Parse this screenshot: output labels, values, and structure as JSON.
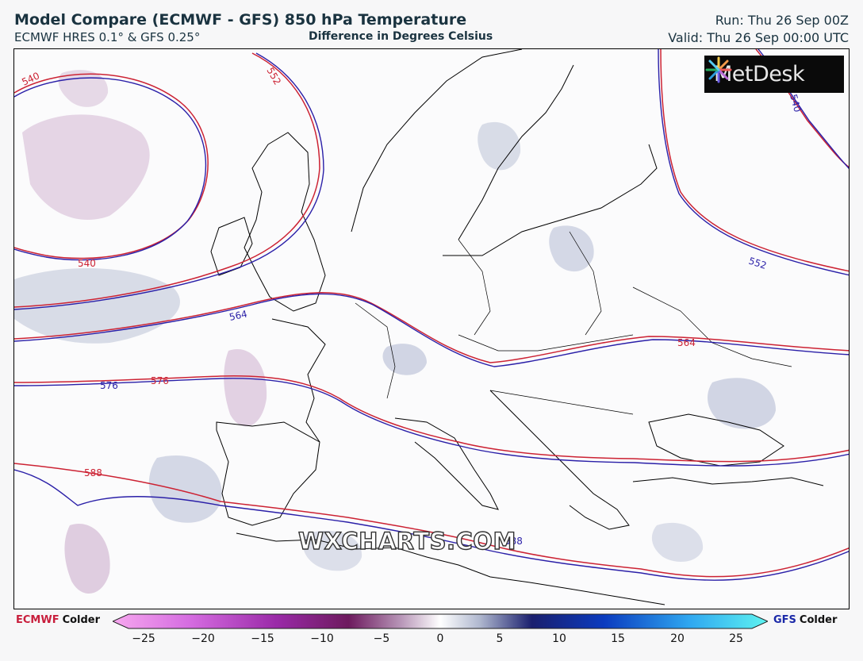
{
  "header": {
    "title": "Model Compare (ECMWF - GFS) 850 hPa Temperature",
    "subtitle": "ECMWF HRES 0.1° & GFS 0.25°",
    "difference_label": "Difference in Degrees Celsius",
    "run": "Run: Thu 26 Sep 00Z",
    "valid": "Valid: Thu 26 Sep 00:00 UTC"
  },
  "logo": {
    "text": "MetDesk",
    "icon": "metdesk-burst-icon"
  },
  "watermark": "WXCHARTS.COM",
  "contour_labels": {
    "ecmwf": [
      "540",
      "552",
      "540",
      "564",
      "576",
      "588",
      "564",
      "552"
    ],
    "gfs": [
      "540",
      "552",
      "564",
      "576",
      "588",
      "552"
    ]
  },
  "colors": {
    "ecmwf_line": "#cc2233",
    "gfs_line": "#2a1fa8",
    "coastline": "#000000",
    "ecmwf_colder_shade": "#c9a7c9",
    "gfs_colder_shade": "#aeb6cf",
    "title": "#1a3340"
  },
  "legend": {
    "left_model": "ECMWF",
    "left_word": "Colder",
    "right_model": "GFS",
    "right_word": "Colder",
    "ticks": [
      "−25",
      "−20",
      "−15",
      "−10",
      "−5",
      "0",
      "5",
      "10",
      "15",
      "20",
      "25"
    ],
    "min": -25,
    "max": 25
  }
}
